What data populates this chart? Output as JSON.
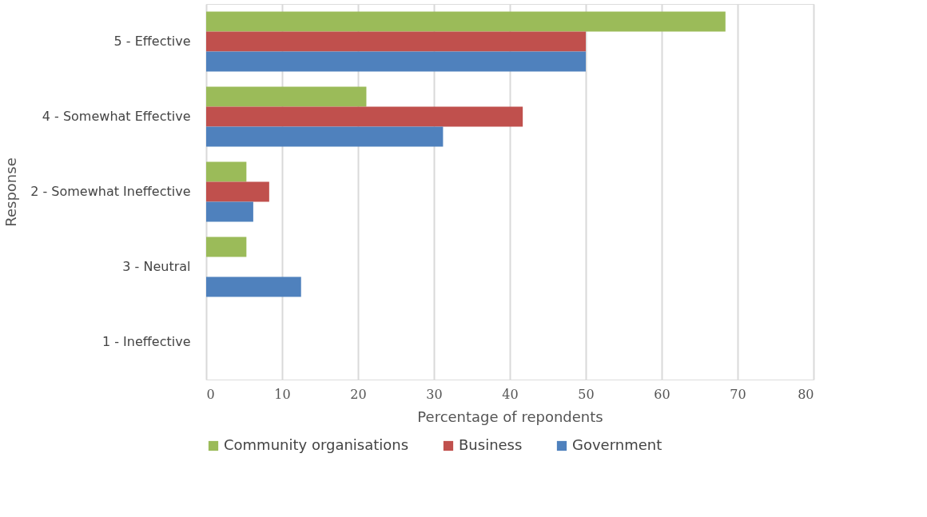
{
  "chart_data": {
    "type": "bar",
    "orientation": "horizontal",
    "xlabel": "Percentage of repondents",
    "ylabel": "Response",
    "categories": [
      "5 - Effective",
      "4 - Somewhat Effective",
      "2 - Somewhat Ineffective",
      "3 - Neutral",
      "1 - Ineffective"
    ],
    "series": [
      {
        "name": "Community organisations",
        "color": "#9bbb59",
        "values": [
          68.4,
          21.1,
          5.3,
          5.3,
          0
        ]
      },
      {
        "name": "Business",
        "color": "#c0504d",
        "values": [
          50.0,
          41.7,
          8.3,
          0,
          0
        ]
      },
      {
        "name": "Government",
        "color": "#4f81bd",
        "values": [
          50.0,
          31.2,
          6.2,
          12.5,
          0
        ]
      }
    ],
    "xlim": [
      0,
      80
    ],
    "xticks": [
      0,
      10,
      20,
      30,
      40,
      50,
      60,
      70,
      80
    ],
    "grid": "x",
    "legend": "bottom"
  }
}
